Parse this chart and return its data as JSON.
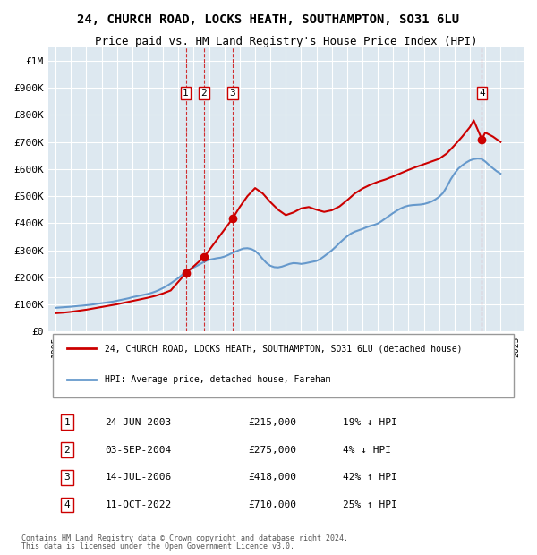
{
  "title": "24, CHURCH ROAD, LOCKS HEATH, SOUTHAMPTON, SO31 6LU",
  "subtitle": "Price paid vs. HM Land Registry's House Price Index (HPI)",
  "legend_line1": "24, CHURCH ROAD, LOCKS HEATH, SOUTHAMPTON, SO31 6LU (detached house)",
  "legend_line2": "HPI: Average price, detached house, Fareham",
  "footnote1": "Contains HM Land Registry data © Crown copyright and database right 2024.",
  "footnote2": "This data is licensed under the Open Government Licence v3.0.",
  "transactions": [
    {
      "num": 1,
      "date": "24-JUN-2003",
      "price": 215000,
      "pct": "19%",
      "dir": "↓",
      "year": 2003.48
    },
    {
      "num": 2,
      "date": "03-SEP-2004",
      "price": 275000,
      "pct": "4%",
      "dir": "↓",
      "year": 2004.67
    },
    {
      "num": 3,
      "date": "14-JUL-2006",
      "price": 418000,
      "pct": "42%",
      "dir": "↑",
      "year": 2006.54
    },
    {
      "num": 4,
      "date": "11-OCT-2022",
      "price": 710000,
      "pct": "25%",
      "dir": "↑",
      "year": 2022.78
    }
  ],
  "hpi_color": "#6699cc",
  "price_color": "#cc0000",
  "bg_color": "#dde8f0",
  "grid_color": "#ffffff",
  "marker_box_color": "#cc0000",
  "ylim": [
    0,
    1050000
  ],
  "xlim": [
    1994.5,
    2025.5
  ],
  "yticks": [
    0,
    100000,
    200000,
    300000,
    400000,
    500000,
    600000,
    700000,
    800000,
    900000,
    1000000
  ],
  "ytick_labels": [
    "£0",
    "£100K",
    "£200K",
    "£300K",
    "£400K",
    "£500K",
    "£600K",
    "£700K",
    "£800K",
    "£900K",
    "£1M"
  ],
  "xticks": [
    1995,
    1996,
    1997,
    1998,
    1999,
    2000,
    2001,
    2002,
    2003,
    2004,
    2005,
    2006,
    2007,
    2008,
    2009,
    2010,
    2011,
    2012,
    2013,
    2014,
    2015,
    2016,
    2017,
    2018,
    2019,
    2020,
    2021,
    2022,
    2023,
    2024,
    2025
  ],
  "hpi_data_x": [
    1995,
    1995.25,
    1995.5,
    1995.75,
    1996,
    1996.25,
    1996.5,
    1996.75,
    1997,
    1997.25,
    1997.5,
    1997.75,
    1998,
    1998.25,
    1998.5,
    1998.75,
    1999,
    1999.25,
    1999.5,
    1999.75,
    2000,
    2000.25,
    2000.5,
    2000.75,
    2001,
    2001.25,
    2001.5,
    2001.75,
    2002,
    2002.25,
    2002.5,
    2002.75,
    2003,
    2003.25,
    2003.5,
    2003.75,
    2004,
    2004.25,
    2004.5,
    2004.75,
    2005,
    2005.25,
    2005.5,
    2005.75,
    2006,
    2006.25,
    2006.5,
    2006.75,
    2007,
    2007.25,
    2007.5,
    2007.75,
    2008,
    2008.25,
    2008.5,
    2008.75,
    2009,
    2009.25,
    2009.5,
    2009.75,
    2010,
    2010.25,
    2010.5,
    2010.75,
    2011,
    2011.25,
    2011.5,
    2011.75,
    2012,
    2012.25,
    2012.5,
    2012.75,
    2013,
    2013.25,
    2013.5,
    2013.75,
    2014,
    2014.25,
    2014.5,
    2014.75,
    2015,
    2015.25,
    2015.5,
    2015.75,
    2016,
    2016.25,
    2016.5,
    2016.75,
    2017,
    2017.25,
    2017.5,
    2017.75,
    2018,
    2018.25,
    2018.5,
    2018.75,
    2019,
    2019.25,
    2019.5,
    2019.75,
    2020,
    2020.25,
    2020.5,
    2020.75,
    2021,
    2021.25,
    2021.5,
    2021.75,
    2022,
    2022.25,
    2022.5,
    2022.75,
    2023,
    2023.25,
    2023.5,
    2023.75,
    2024
  ],
  "hpi_data_y": [
    88000,
    89000,
    90000,
    91000,
    92000,
    93500,
    95000,
    96000,
    97500,
    99000,
    101000,
    103000,
    105000,
    107000,
    109000,
    111000,
    114000,
    117000,
    120000,
    123000,
    127000,
    130000,
    133000,
    136000,
    139000,
    143000,
    148000,
    154000,
    161000,
    169000,
    178000,
    188000,
    198000,
    210000,
    221000,
    230000,
    237000,
    244000,
    252000,
    260000,
    265000,
    268000,
    271000,
    273000,
    277000,
    283000,
    290000,
    296000,
    302000,
    307000,
    308000,
    305000,
    298000,
    285000,
    268000,
    253000,
    243000,
    238000,
    237000,
    240000,
    245000,
    250000,
    253000,
    252000,
    250000,
    252000,
    255000,
    258000,
    261000,
    268000,
    278000,
    289000,
    300000,
    313000,
    327000,
    340000,
    352000,
    362000,
    369000,
    374000,
    379000,
    385000,
    390000,
    394000,
    399000,
    408000,
    418000,
    428000,
    438000,
    447000,
    455000,
    461000,
    465000,
    467000,
    468000,
    469000,
    471000,
    475000,
    480000,
    488000,
    498000,
    512000,
    535000,
    562000,
    584000,
    602000,
    614000,
    624000,
    632000,
    637000,
    639000,
    638000,
    628000,
    615000,
    603000,
    592000,
    583000
  ],
  "price_data_x": [
    1995,
    1995.5,
    1996,
    1996.5,
    1997,
    1997.5,
    1998,
    1998.5,
    1999,
    1999.5,
    2000,
    2000.5,
    2001,
    2001.5,
    2002,
    2002.5,
    2003.48,
    2004.67,
    2006.54,
    2007,
    2007.5,
    2008,
    2008.5,
    2009,
    2009.5,
    2010,
    2010.5,
    2011,
    2011.5,
    2012,
    2012.5,
    2013,
    2013.5,
    2014,
    2014.5,
    2015,
    2015.5,
    2016,
    2016.5,
    2017,
    2017.5,
    2018,
    2018.5,
    2019,
    2019.5,
    2020,
    2020.5,
    2021,
    2021.5,
    2022,
    2022.25,
    2022.78,
    2023,
    2023.5,
    2024
  ],
  "price_data_y": [
    68000,
    70000,
    73000,
    77000,
    81000,
    86000,
    91000,
    96000,
    101000,
    107000,
    113000,
    119000,
    125000,
    132000,
    141000,
    152000,
    215000,
    275000,
    418000,
    460000,
    500000,
    530000,
    510000,
    478000,
    450000,
    430000,
    440000,
    455000,
    460000,
    450000,
    442000,
    448000,
    462000,
    485000,
    510000,
    528000,
    542000,
    553000,
    562000,
    573000,
    585000,
    597000,
    608000,
    618000,
    628000,
    638000,
    658000,
    688000,
    720000,
    755000,
    780000,
    710000,
    735000,
    720000,
    700000
  ]
}
